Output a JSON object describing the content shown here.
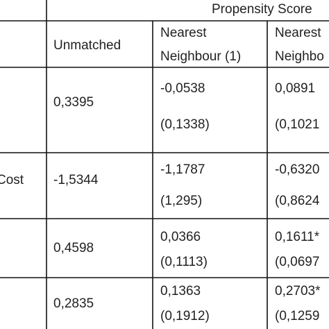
{
  "table": {
    "group_header": "Propensity Score",
    "columns": [
      "Unmatched",
      "Nearest\nNeighbour (1)",
      "Nearest\nNeighbo"
    ],
    "rows": [
      {
        "label": null,
        "cells": [
          [
            "0,3395"
          ],
          [
            "-0,0538",
            "(0,1338)"
          ],
          [
            "0,0891",
            "(0,1021"
          ]
        ]
      },
      {
        "label": "Cost",
        "cells": [
          [
            "-1,5344"
          ],
          [
            "-1,1787",
            "(1,295)"
          ],
          [
            "-0,6320",
            "(0,8624"
          ]
        ]
      },
      {
        "label": null,
        "cells": [
          [
            "0,4598"
          ],
          [
            "0,0366",
            "(0,1113)"
          ],
          [
            "0,1611*",
            "(0,0697"
          ]
        ]
      },
      {
        "label": null,
        "cells": [
          [
            "0,2835"
          ],
          [
            "0,1363",
            "(0,1912)"
          ],
          [
            "0,2703*",
            "(0,1259"
          ]
        ]
      }
    ]
  }
}
